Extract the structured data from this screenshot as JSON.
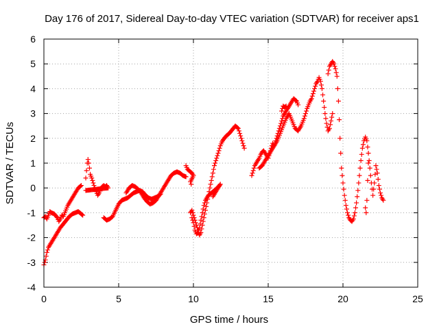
{
  "chart_data": {
    "type": "scatter",
    "title": "Day 176 of 2017, Sidereal Day-to-day VTEC variation (SDTVAR) for receiver aps1",
    "xlabel": "GPS time / hours",
    "ylabel": "SDTVAR / TECUs",
    "xlim": [
      0,
      25
    ],
    "ylim": [
      -4,
      6
    ],
    "xticks": [
      0,
      5,
      10,
      15,
      20,
      25
    ],
    "yticks": [
      -4,
      -3,
      -2,
      -1,
      0,
      1,
      2,
      3,
      4,
      5,
      6
    ],
    "grid": true,
    "marker": "plus",
    "color": "#ff0000",
    "series": [
      {
        "tracks": [
          [
            [
              0.0,
              -3.1
            ],
            [
              0.1,
              -2.9
            ],
            [
              0.2,
              -2.6
            ],
            [
              0.3,
              -2.4
            ],
            [
              0.5,
              -2.2
            ],
            [
              0.7,
              -2.0
            ],
            [
              0.9,
              -1.8
            ],
            [
              1.1,
              -1.6
            ],
            [
              1.3,
              -1.45
            ],
            [
              1.5,
              -1.3
            ],
            [
              1.7,
              -1.15
            ],
            [
              1.9,
              -1.05
            ],
            [
              2.1,
              -1.0
            ],
            [
              2.3,
              -0.95
            ],
            [
              2.5,
              -1.05
            ],
            [
              2.6,
              -1.1
            ]
          ],
          [
            [
              0.0,
              -1.2
            ],
            [
              0.1,
              -1.15
            ],
            [
              0.2,
              -1.25
            ],
            [
              0.3,
              -1.1
            ],
            [
              0.4,
              -0.95
            ],
            [
              0.5,
              -1.0
            ],
            [
              0.7,
              -1.05
            ],
            [
              0.9,
              -1.2
            ],
            [
              1.0,
              -1.35
            ],
            [
              1.1,
              -1.25
            ],
            [
              1.2,
              -1.1
            ],
            [
              1.3,
              -1.15
            ],
            [
              1.4,
              -1.0
            ],
            [
              1.5,
              -0.85
            ],
            [
              1.6,
              -0.7
            ],
            [
              1.7,
              -0.6
            ],
            [
              1.8,
              -0.5
            ],
            [
              1.9,
              -0.4
            ],
            [
              2.0,
              -0.3
            ],
            [
              2.1,
              -0.2
            ],
            [
              2.2,
              -0.1
            ],
            [
              2.3,
              0.0
            ],
            [
              2.4,
              0.05
            ],
            [
              2.5,
              0.1
            ]
          ],
          [
            [
              2.8,
              0.4
            ],
            [
              2.85,
              0.7
            ],
            [
              2.9,
              1.0
            ],
            [
              2.95,
              1.15
            ],
            [
              3.0,
              1.0
            ],
            [
              3.05,
              0.8
            ],
            [
              3.1,
              0.55
            ],
            [
              3.2,
              0.4
            ],
            [
              3.3,
              0.2
            ],
            [
              3.4,
              0.0
            ],
            [
              3.5,
              -0.15
            ],
            [
              3.6,
              -0.3
            ],
            [
              3.7,
              -0.2
            ],
            [
              3.8,
              -0.05
            ],
            [
              3.9,
              0.05
            ],
            [
              4.0,
              0.1
            ],
            [
              4.1,
              0.05
            ],
            [
              4.2,
              0.1
            ],
            [
              4.3,
              0.0
            ],
            [
              2.8,
              -0.1
            ]
          ],
          [
            [
              4.0,
              -1.2
            ],
            [
              4.2,
              -1.3
            ],
            [
              4.4,
              -1.25
            ],
            [
              4.6,
              -1.15
            ],
            [
              4.8,
              -0.9
            ],
            [
              5.0,
              -0.65
            ],
            [
              5.2,
              -0.5
            ],
            [
              5.4,
              -0.45
            ],
            [
              5.6,
              -0.4
            ],
            [
              5.8,
              -0.3
            ],
            [
              6.0,
              -0.2
            ],
            [
              6.2,
              -0.15
            ],
            [
              6.4,
              -0.1
            ],
            [
              6.6,
              -0.15
            ],
            [
              6.8,
              -0.3
            ],
            [
              7.0,
              -0.4
            ],
            [
              7.2,
              -0.45
            ],
            [
              7.4,
              -0.4
            ],
            [
              7.6,
              -0.35
            ],
            [
              7.8,
              -0.25
            ]
          ],
          [
            [
              5.5,
              -0.2
            ],
            [
              5.7,
              0.0
            ],
            [
              5.9,
              0.1
            ],
            [
              6.1,
              0.05
            ],
            [
              6.3,
              -0.05
            ],
            [
              6.5,
              -0.2
            ],
            [
              6.7,
              -0.4
            ],
            [
              6.9,
              -0.55
            ],
            [
              7.1,
              -0.65
            ],
            [
              7.3,
              -0.6
            ],
            [
              7.5,
              -0.5
            ],
            [
              7.7,
              -0.3
            ],
            [
              7.9,
              -0.1
            ],
            [
              8.1,
              0.1
            ],
            [
              8.3,
              0.3
            ],
            [
              8.5,
              0.5
            ],
            [
              8.7,
              0.6
            ],
            [
              8.9,
              0.65
            ],
            [
              9.1,
              0.6
            ],
            [
              9.3,
              0.5
            ],
            [
              9.5,
              0.45
            ]
          ],
          [
            [
              9.5,
              0.9
            ],
            [
              9.6,
              0.75
            ],
            [
              9.7,
              0.7
            ],
            [
              9.8,
              0.65
            ],
            [
              9.9,
              0.6
            ],
            [
              10.0,
              0.5
            ],
            [
              9.8,
              0.25
            ],
            [
              9.85,
              0.15
            ]
          ],
          [
            [
              9.8,
              -1.0
            ],
            [
              9.9,
              -0.9
            ],
            [
              10.0,
              -1.1
            ],
            [
              10.1,
              -1.3
            ],
            [
              10.2,
              -1.5
            ],
            [
              10.3,
              -1.7
            ],
            [
              10.4,
              -1.9
            ],
            [
              10.5,
              -1.8
            ],
            [
              10.6,
              -1.5
            ],
            [
              10.7,
              -1.2
            ],
            [
              10.8,
              -0.9
            ],
            [
              10.9,
              -0.6
            ],
            [
              11.0,
              -0.3
            ],
            [
              11.1,
              0.0
            ],
            [
              11.2,
              0.3
            ],
            [
              11.3,
              0.6
            ],
            [
              11.4,
              0.9
            ],
            [
              11.5,
              1.1
            ],
            [
              11.6,
              1.3
            ],
            [
              11.7,
              1.5
            ],
            [
              11.8,
              1.7
            ],
            [
              11.9,
              1.85
            ],
            [
              12.0,
              1.95
            ],
            [
              12.2,
              2.1
            ],
            [
              12.4,
              2.2
            ],
            [
              12.6,
              2.35
            ],
            [
              12.8,
              2.5
            ],
            [
              13.0,
              2.4
            ],
            [
              13.1,
              2.2
            ],
            [
              13.2,
              2.0
            ],
            [
              13.3,
              1.8
            ],
            [
              13.4,
              1.6
            ]
          ],
          [
            [
              9.9,
              -1.2
            ],
            [
              10.0,
              -1.4
            ],
            [
              10.1,
              -1.7
            ],
            [
              10.2,
              -1.85
            ],
            [
              10.3,
              -1.8
            ],
            [
              10.4,
              -1.6
            ],
            [
              10.5,
              -1.3
            ],
            [
              10.6,
              -1.0
            ],
            [
              10.7,
              -0.7
            ],
            [
              10.8,
              -0.5
            ],
            [
              10.9,
              -0.4
            ],
            [
              11.0,
              -0.3
            ],
            [
              11.2,
              -0.2
            ],
            [
              11.4,
              -0.1
            ],
            [
              11.6,
              0.0
            ],
            [
              11.8,
              0.15
            ],
            [
              11.3,
              -0.35
            ]
          ],
          [
            [
              13.9,
              0.5
            ],
            [
              14.0,
              0.7
            ],
            [
              14.1,
              0.9
            ],
            [
              14.2,
              1.0
            ],
            [
              14.3,
              1.1
            ],
            [
              14.4,
              1.2
            ],
            [
              14.5,
              1.35
            ],
            [
              14.6,
              1.45
            ],
            [
              14.7,
              1.5
            ],
            [
              14.8,
              1.4
            ],
            [
              14.9,
              1.3
            ],
            [
              15.0,
              1.2
            ],
            [
              15.1,
              1.4
            ],
            [
              15.2,
              1.6
            ],
            [
              15.3,
              1.8
            ],
            [
              15.4,
              1.7
            ],
            [
              15.5,
              1.9
            ],
            [
              15.6,
              2.1
            ],
            [
              15.7,
              2.3
            ],
            [
              15.8,
              2.5
            ],
            [
              15.9,
              2.7
            ],
            [
              16.0,
              2.9
            ],
            [
              16.1,
              3.0
            ],
            [
              16.3,
              3.2
            ],
            [
              16.5,
              3.4
            ],
            [
              16.7,
              3.6
            ],
            [
              16.9,
              3.5
            ],
            [
              17.0,
              3.35
            ]
          ],
          [
            [
              14.4,
              0.8
            ],
            [
              14.6,
              0.9
            ],
            [
              14.8,
              1.1
            ],
            [
              15.0,
              1.3
            ],
            [
              15.2,
              1.5
            ],
            [
              15.4,
              1.7
            ],
            [
              15.6,
              1.9
            ],
            [
              15.8,
              2.2
            ],
            [
              16.0,
              2.5
            ],
            [
              16.2,
              2.8
            ],
            [
              16.4,
              3.0
            ],
            [
              16.6,
              2.7
            ],
            [
              16.8,
              2.4
            ],
            [
              17.0,
              2.3
            ],
            [
              17.2,
              2.5
            ],
            [
              17.4,
              2.8
            ],
            [
              17.6,
              3.2
            ],
            [
              17.8,
              3.5
            ],
            [
              17.9,
              3.6
            ],
            [
              18.0,
              3.8
            ],
            [
              18.1,
              4.0
            ],
            [
              18.2,
              4.2
            ],
            [
              18.3,
              4.3
            ],
            [
              18.4,
              4.45
            ],
            [
              18.5,
              4.3
            ],
            [
              18.6,
              4.0
            ],
            [
              18.7,
              3.5
            ],
            [
              18.8,
              3.0
            ],
            [
              18.9,
              2.6
            ],
            [
              19.0,
              2.3
            ],
            [
              19.1,
              2.4
            ],
            [
              19.2,
              2.7
            ],
            [
              19.3,
              3.0
            ]
          ],
          [
            [
              15.9,
              3.1
            ],
            [
              16.0,
              3.3
            ],
            [
              16.1,
              3.25
            ],
            [
              16.2,
              3.3
            ]
          ],
          [
            [
              19.0,
              4.6
            ],
            [
              19.1,
              4.9
            ],
            [
              19.2,
              5.0
            ],
            [
              19.3,
              5.1
            ],
            [
              19.4,
              5.0
            ],
            [
              19.5,
              4.8
            ],
            [
              19.6,
              4.5
            ],
            [
              19.7,
              3.5
            ],
            [
              19.8,
              2.0
            ],
            [
              19.9,
              0.8
            ],
            [
              20.0,
              0.2
            ],
            [
              20.1,
              -0.3
            ],
            [
              20.2,
              -0.7
            ],
            [
              20.3,
              -1.0
            ],
            [
              20.4,
              -1.2
            ],
            [
              20.5,
              -1.3
            ],
            [
              20.6,
              -1.35
            ],
            [
              20.7,
              -1.25
            ],
            [
              20.8,
              -1.0
            ],
            [
              20.9,
              -0.6
            ],
            [
              21.0,
              -0.1
            ],
            [
              21.1,
              0.5
            ],
            [
              21.2,
              1.1
            ],
            [
              21.3,
              1.6
            ],
            [
              21.4,
              1.9
            ],
            [
              21.5,
              2.05
            ],
            [
              21.6,
              1.9
            ],
            [
              21.7,
              1.4
            ],
            [
              21.8,
              0.8
            ],
            [
              21.9,
              0.2
            ],
            [
              22.0,
              -0.3
            ],
            [
              22.1,
              0.2
            ],
            [
              22.2,
              0.9
            ],
            [
              22.3,
              0.6
            ],
            [
              22.4,
              0.1
            ],
            [
              22.5,
              -0.2
            ],
            [
              22.6,
              -0.4
            ],
            [
              22.7,
              -0.5
            ]
          ],
          [
            [
              21.5,
              -0.8
            ],
            [
              21.55,
              -1.0
            ],
            [
              21.6,
              -0.5
            ],
            [
              21.65,
              0.3
            ],
            [
              21.7,
              1.0
            ]
          ]
        ]
      }
    ]
  }
}
